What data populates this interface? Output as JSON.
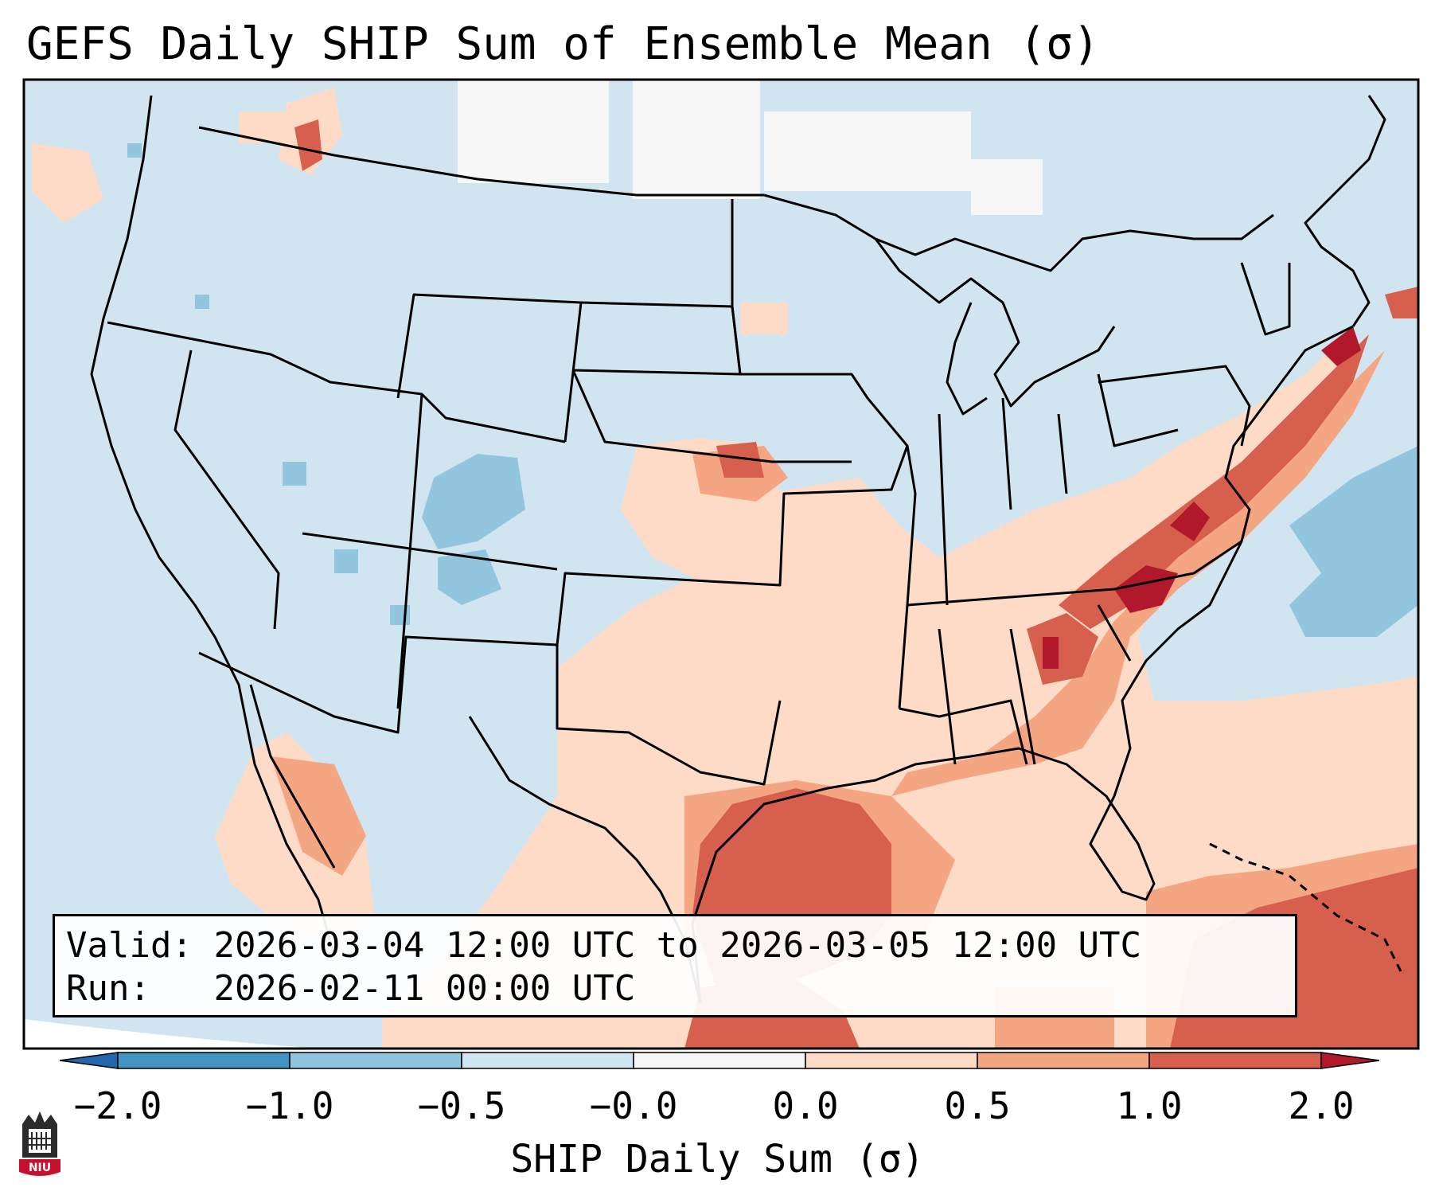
{
  "title": "GEFS Daily SHIP Sum of Ensemble Mean (σ)",
  "info": {
    "valid_label": "Valid:",
    "valid_value": "2026-03-04 12:00 UTC to 2026-03-05 12:00 UTC",
    "run_label": "Run:",
    "run_value": "2026-02-11 00:00 UTC"
  },
  "colorbar": {
    "label": "SHIP Daily Sum (σ)",
    "ticks": [
      "−2.0",
      "−1.0",
      "−0.5",
      "−0.0",
      "0.0",
      "0.5",
      "1.0",
      "2.0"
    ],
    "bins": [
      {
        "range": "< −2.0",
        "color": "#2166ac"
      },
      {
        "range": "−2.0 to −1.0",
        "color": "#4393c3"
      },
      {
        "range": "−1.0 to −0.5",
        "color": "#92c5de"
      },
      {
        "range": "−0.5 to −0.0",
        "color": "#d1e5f0"
      },
      {
        "range": "−0.0 to 0.0",
        "color": "#f7f7f7"
      },
      {
        "range": "0.0 to 0.5",
        "color": "#fddbc7"
      },
      {
        "range": "0.5 to 1.0",
        "color": "#f4a582"
      },
      {
        "range": "1.0 to 2.0",
        "color": "#d6604d"
      },
      {
        "range": "> 2.0",
        "color": "#b2182b"
      }
    ]
  },
  "colors": {
    "blue_strong": "#92c5de",
    "blue_light": "#d1e5f0",
    "neutral": "#f7f7f7",
    "red_light": "#fddbc7",
    "red_mid": "#f4a582",
    "red_strong": "#d6604d",
    "red_extreme": "#b2182b"
  },
  "logo": {
    "text": "NIU"
  }
}
